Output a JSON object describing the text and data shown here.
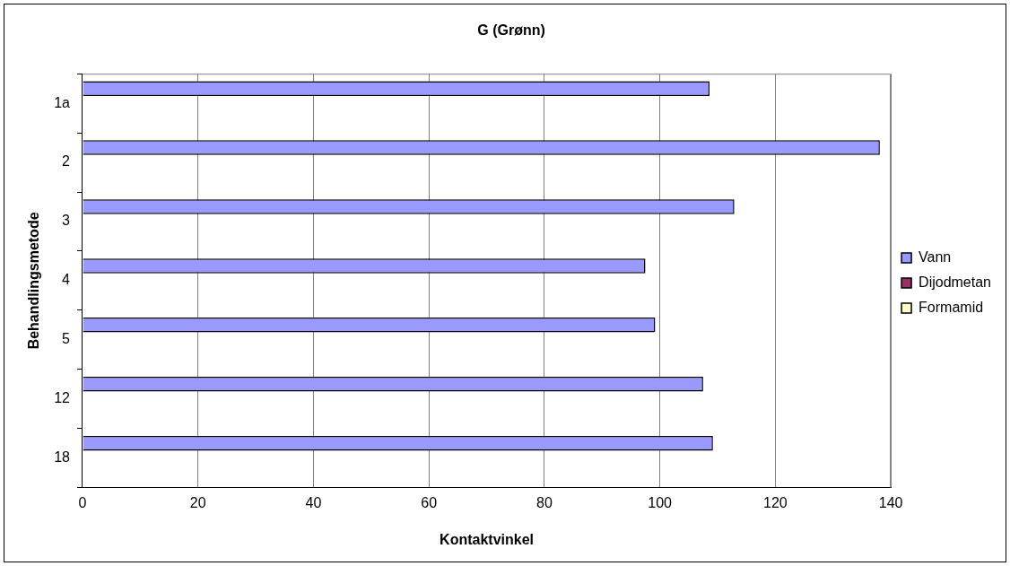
{
  "chart_data": {
    "type": "bar",
    "orientation": "horizontal",
    "title": "G (Grønn)",
    "xlabel": "Kontaktvinkel",
    "ylabel": "Behandlingsmetode",
    "categories": [
      "1a",
      "2",
      "3",
      "4",
      "5",
      "12",
      "18"
    ],
    "series": [
      {
        "name": "Vann",
        "color": "#9999ff",
        "values": [
          108.6,
          138.1,
          112.9,
          97.5,
          99.2,
          107.5,
          109.2
        ]
      },
      {
        "name": "Dijodmetan",
        "color": "#993366",
        "values": [
          null,
          null,
          null,
          null,
          null,
          null,
          null
        ]
      },
      {
        "name": "Formamid",
        "color": "#ffffcc",
        "values": [
          null,
          null,
          null,
          null,
          null,
          null,
          null
        ]
      }
    ],
    "xlim": [
      0,
      140
    ],
    "xticks": [
      0,
      20,
      40,
      60,
      80,
      100,
      120,
      140
    ],
    "grid": "x",
    "legend": "right"
  }
}
